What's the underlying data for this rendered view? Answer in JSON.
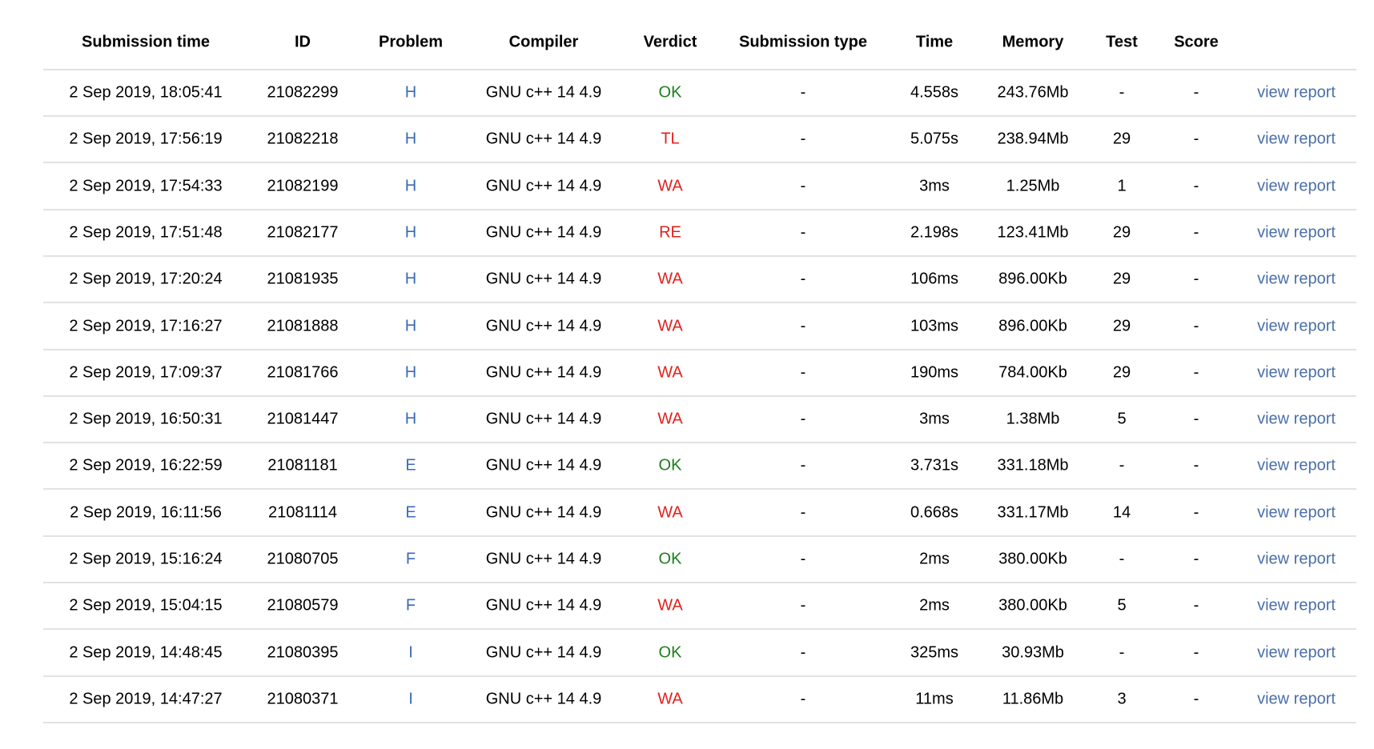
{
  "table": {
    "header": [
      "Submission time",
      "ID",
      "Problem",
      "Compiler",
      "Verdict",
      "Submission type",
      "Time",
      "Memory",
      "Test",
      "Score"
    ],
    "rows": [
      [
        "2 Sep 2019, 18:05:41",
        "21082299",
        "H",
        "GNU c++ 14 4.9",
        "OK",
        "-",
        "4.558s",
        "243.76Mb",
        "-",
        "-",
        "view report"
      ],
      [
        "2 Sep 2019, 17:56:19",
        "21082218",
        "H",
        "GNU c++ 14 4.9",
        "TL",
        "-",
        "5.075s",
        "238.94Mb",
        "29",
        "-",
        "view report"
      ],
      [
        "2 Sep 2019, 17:54:33",
        "21082199",
        "H",
        "GNU c++ 14 4.9",
        "WA",
        "-",
        "3ms",
        "1.25Mb",
        "1",
        "-",
        "view report"
      ],
      [
        "2 Sep 2019, 17:51:48",
        "21082177",
        "H",
        "GNU c++ 14 4.9",
        "RE",
        "-",
        "2.198s",
        "123.41Mb",
        "29",
        "-",
        "view report"
      ],
      [
        "2 Sep 2019, 17:20:24",
        "21081935",
        "H",
        "GNU c++ 14 4.9",
        "WA",
        "-",
        "106ms",
        "896.00Kb",
        "29",
        "-",
        "view report"
      ],
      [
        "2 Sep 2019, 17:16:27",
        "21081888",
        "H",
        "GNU c++ 14 4.9",
        "WA",
        "-",
        "103ms",
        "896.00Kb",
        "29",
        "-",
        "view report"
      ],
      [
        "2 Sep 2019, 17:09:37",
        "21081766",
        "H",
        "GNU c++ 14 4.9",
        "WA",
        "-",
        "190ms",
        "784.00Kb",
        "29",
        "-",
        "view report"
      ],
      [
        "2 Sep 2019, 16:50:31",
        "21081447",
        "H",
        "GNU c++ 14 4.9",
        "WA",
        "-",
        "3ms",
        "1.38Mb",
        "5",
        "-",
        "view report"
      ],
      [
        "2 Sep 2019, 16:22:59",
        "21081181",
        "E",
        "GNU c++ 14 4.9",
        "OK",
        "-",
        "3.731s",
        "331.18Mb",
        "-",
        "-",
        "view report"
      ],
      [
        "2 Sep 2019, 16:11:56",
        "21081114",
        "E",
        "GNU c++ 14 4.9",
        "WA",
        "-",
        "0.668s",
        "331.17Mb",
        "14",
        "-",
        "view report"
      ],
      [
        "2 Sep 2019, 15:16:24",
        "21080705",
        "F",
        "GNU c++ 14 4.9",
        "OK",
        "-",
        "2ms",
        "380.00Kb",
        "-",
        "-",
        "view report"
      ],
      [
        "2 Sep 2019, 15:04:15",
        "21080579",
        "F",
        "GNU c++ 14 4.9",
        "WA",
        "-",
        "2ms",
        "380.00Kb",
        "5",
        "-",
        "view report"
      ],
      [
        "2 Sep 2019, 14:48:45",
        "21080395",
        "I",
        "GNU c++ 14 4.9",
        "OK",
        "-",
        "325ms",
        "30.93Mb",
        "-",
        "-",
        "view report"
      ],
      [
        "2 Sep 2019, 14:47:27",
        "21080371",
        "I",
        "GNU c++ 14 4.9",
        "WA",
        "-",
        "11ms",
        "11.86Mb",
        "3",
        "-",
        "view report"
      ]
    ]
  }
}
